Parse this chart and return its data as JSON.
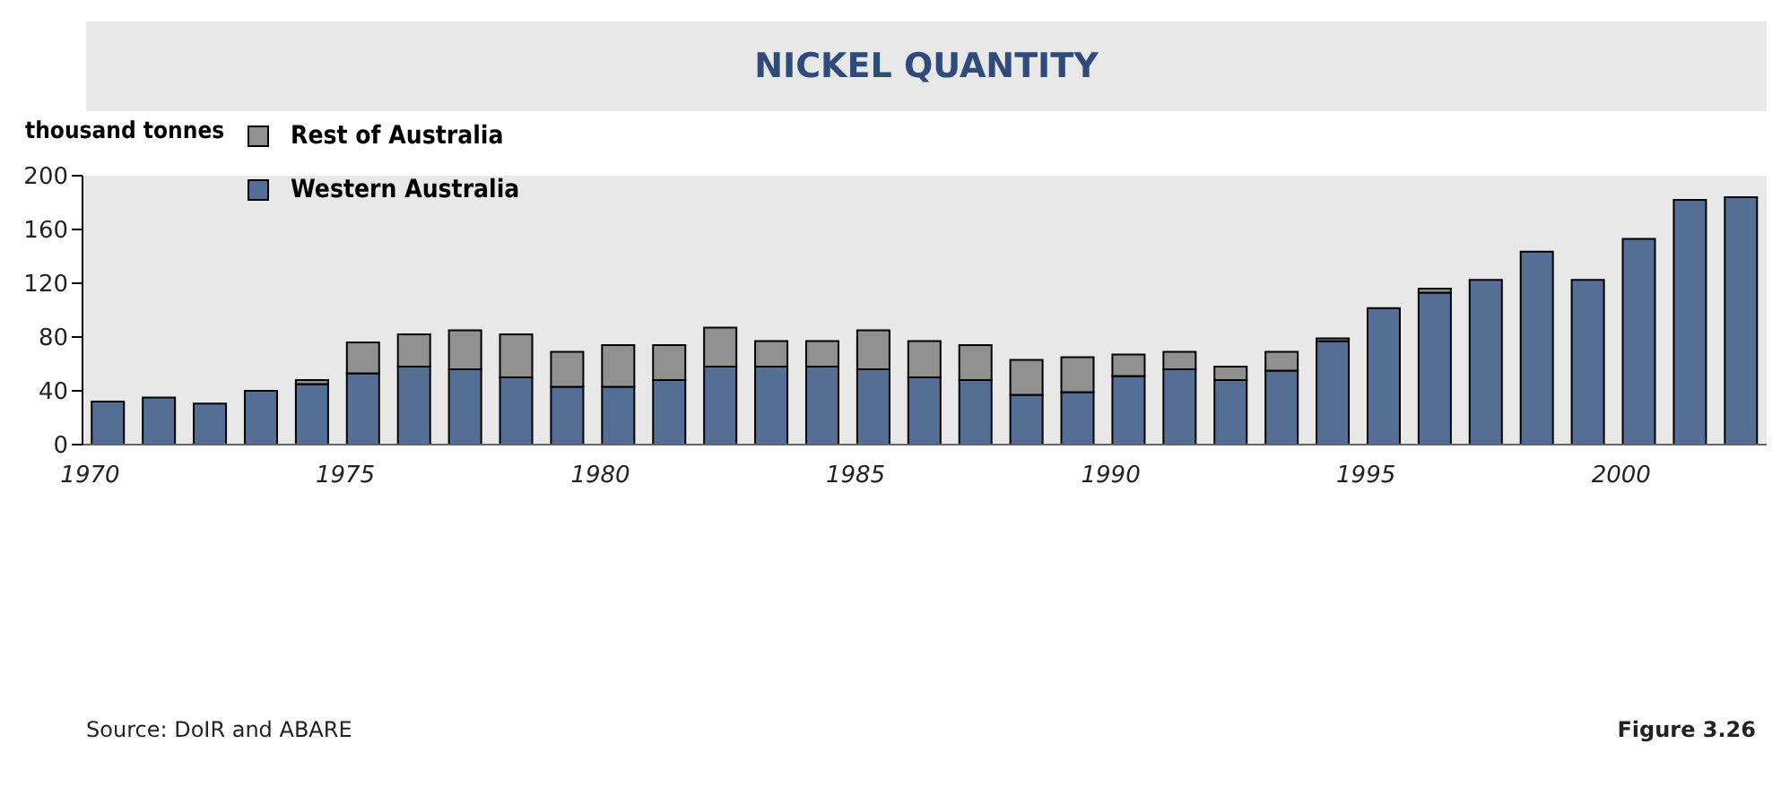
{
  "chart_data": {
    "type": "bar",
    "title": "NICKEL QUANTITY",
    "ylabel": "thousand tonnes",
    "categories": [
      "1970",
      null,
      null,
      null,
      null,
      "1975",
      null,
      null,
      null,
      null,
      "1980",
      null,
      null,
      null,
      null,
      "1985",
      null,
      null,
      null,
      null,
      "1990",
      null,
      null,
      null,
      null,
      "1995",
      null,
      null,
      null,
      null,
      "2000",
      null,
      null
    ],
    "stacked": true,
    "ylim": [
      0,
      200
    ],
    "yticks": [
      0,
      40,
      80,
      120,
      160,
      200
    ],
    "grid": false,
    "legend": "top left",
    "series": [
      {
        "name": "Western Australia",
        "color": "#546e96",
        "values": [
          32,
          35,
          30.5,
          40,
          45,
          53,
          58,
          56,
          50,
          43,
          43,
          48,
          58,
          58,
          58,
          56,
          50,
          48,
          37,
          39,
          51,
          56,
          48,
          55,
          77,
          101.5,
          113,
          122.5,
          143.5,
          122.5,
          153,
          182,
          184
        ]
      },
      {
        "name": "Rest of Australia",
        "color": "#909090",
        "values": [
          0,
          0,
          0,
          0,
          3,
          23,
          24,
          29,
          32,
          26,
          31,
          26,
          29,
          19,
          19,
          29,
          27,
          26,
          26,
          26,
          16,
          13,
          10,
          14,
          2,
          0,
          3,
          0,
          0,
          0,
          0,
          0,
          0
        ]
      }
    ],
    "annotations": [
      "Source:  DoIR and ABARE",
      "Figure 3.26"
    ]
  }
}
